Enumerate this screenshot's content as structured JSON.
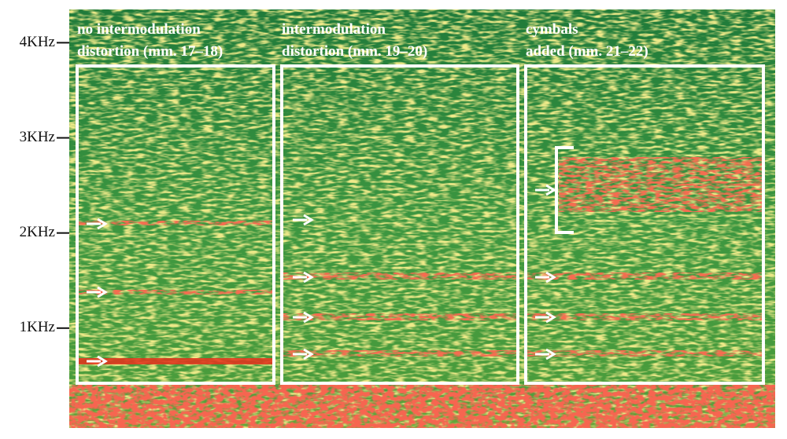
{
  "chart_data": {
    "type": "spectrogram",
    "ylim": [
      -50,
      4350
    ],
    "yticks": [
      {
        "value": 1000,
        "label": "1KHz"
      },
      {
        "value": 2000,
        "label": "2KHz"
      },
      {
        "value": 3000,
        "label": "3KHz"
      },
      {
        "value": 4000,
        "label": "4KHz"
      }
    ],
    "annotations": [
      [
        "no intermodulation",
        "distortion (mm. 17–18)"
      ],
      [
        "intermodulation",
        "distortion (mm. 19–20)"
      ],
      [
        "cymbals",
        "added (mm. 21–22)"
      ]
    ]
  }
}
